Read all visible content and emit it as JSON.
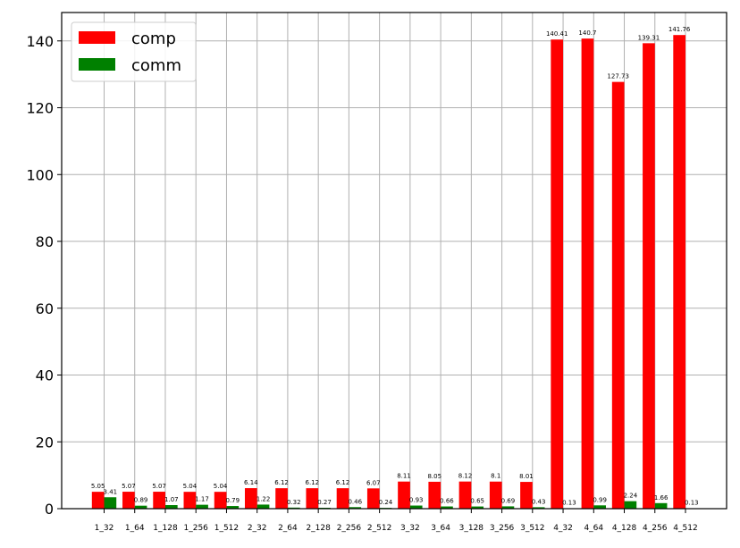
{
  "chart_data": {
    "type": "bar",
    "categories": [
      "1_32",
      "1_64",
      "1_128",
      "1_256",
      "1_512",
      "2_32",
      "2_64",
      "2_128",
      "2_256",
      "2_512",
      "3_32",
      "3_64",
      "3_128",
      "3_256",
      "3_512",
      "4_32",
      "4_64",
      "4_128",
      "4_256",
      "4_512"
    ],
    "series": [
      {
        "name": "comp",
        "color": "#ff0000",
        "values": [
          5.05,
          5.07,
          5.07,
          5.04,
          5.04,
          6.14,
          6.12,
          6.12,
          6.12,
          6.07,
          8.11,
          8.05,
          8.12,
          8.1,
          8.01,
          140.41,
          140.7,
          127.73,
          139.31,
          141.76
        ],
        "value_labels": [
          "5.05",
          "5.07",
          "5.07",
          "5.04",
          "5.04",
          "6.14",
          "6.12",
          "6.12",
          "6.12",
          "6.07",
          "8.11",
          "8.05",
          "8.12",
          "8.1",
          "8.01",
          "140.41",
          "140.7",
          "127.73",
          "139.31",
          "141.76"
        ]
      },
      {
        "name": "comm",
        "color": "#008000",
        "values": [
          3.41,
          0.89,
          1.07,
          1.17,
          0.79,
          1.22,
          0.32,
          0.27,
          0.46,
          0.24,
          0.93,
          0.66,
          0.65,
          0.69,
          0.43,
          0.13,
          0.99,
          2.24,
          1.66,
          0.13
        ],
        "value_labels": [
          "3.41",
          "0.89",
          "1.07",
          "1.17",
          "0.79",
          "1.22",
          "0.32",
          "0.27",
          "0.46",
          "0.24",
          "0.93",
          "0.66",
          "0.65",
          "0.69",
          "0.43",
          "0.13",
          "0.99",
          "2.24",
          "1.66",
          "0.13"
        ]
      }
    ],
    "ylim": [
      0,
      148.5
    ],
    "yticks": [
      0,
      20,
      40,
      60,
      80,
      100,
      120,
      140
    ],
    "ytick_labels": [
      "0",
      "20",
      "40",
      "60",
      "80",
      "100",
      "120",
      "140"
    ],
    "grid": true,
    "legend_position": "top-left"
  }
}
